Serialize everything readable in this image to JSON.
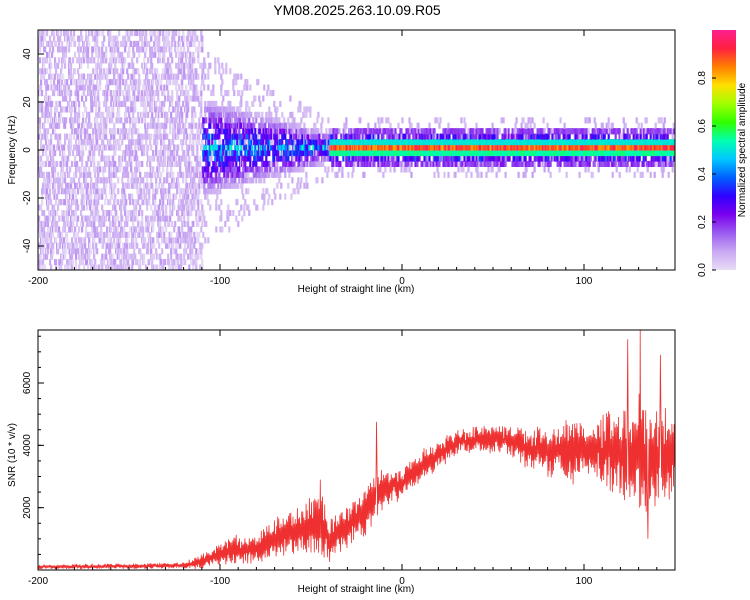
{
  "title": "YM08.2025.263.10.09.R05",
  "chart_data": [
    {
      "type": "heatmap",
      "title": "YM08.2025.263.10.09.R05",
      "xlabel": "Height of straight line (km)",
      "ylabel": "Frequency (Hz)",
      "xlim": [
        -200,
        150
      ],
      "ylim": [
        -50,
        50
      ],
      "xticks": [
        -200,
        -100,
        0,
        100
      ],
      "yticks": [
        -40,
        -20,
        0,
        20,
        40
      ],
      "colorbar": {
        "label": "Normalized spectral amplitude",
        "range": [
          0,
          1
        ],
        "ticks": [
          0.0,
          0.2,
          0.4,
          0.6,
          0.8
        ],
        "colors": [
          "#e8ddf6",
          "#c9a8f2",
          "#9b5cf0",
          "#7a00ee",
          "#3000ff",
          "#0060ff",
          "#00c8ff",
          "#00ffb0",
          "#30ff00",
          "#a0ff00",
          "#ffe000",
          "#ff8000",
          "#ff2040",
          "#ff2090"
        ]
      },
      "regions": [
        {
          "name": "noise",
          "x_range": [
            -200,
            -110
          ],
          "freq_range": [
            -50,
            50
          ],
          "amplitude_range": [
            0.0,
            0.1
          ]
        },
        {
          "name": "spread-signal",
          "x_range": [
            -110,
            -40
          ],
          "freq_range": [
            -10,
            12
          ],
          "amplitude_range": [
            0.05,
            0.55
          ]
        },
        {
          "name": "narrow-line",
          "x_range": [
            -40,
            150
          ],
          "center_freq": 1,
          "freq_halfwidth": 3,
          "amplitude_range": [
            0.4,
            1.0
          ]
        }
      ]
    },
    {
      "type": "line",
      "xlabel": "Height of straight line (km)",
      "ylabel": "SNR (10 * v/v)",
      "xlim": [
        -200,
        150
      ],
      "ylim": [
        0,
        7700
      ],
      "xticks": [
        -200,
        -100,
        0,
        100
      ],
      "yticks": [
        2000,
        4000,
        6000
      ],
      "series": [
        {
          "name": "SNR",
          "color": "#ee3030",
          "x": [
            -200,
            -160,
            -120,
            -110,
            -100,
            -90,
            -80,
            -70,
            -60,
            -50,
            -45,
            -40,
            -30,
            -25,
            -20,
            -15,
            -10,
            0,
            10,
            20,
            30,
            40,
            50,
            60,
            70,
            80,
            90,
            100,
            110,
            120,
            130,
            140,
            150
          ],
          "mean": [
            100,
            120,
            150,
            300,
            500,
            650,
            700,
            1000,
            1200,
            1400,
            1500,
            1000,
            1400,
            1600,
            1900,
            2400,
            2600,
            2800,
            3300,
            3700,
            4100,
            4200,
            4200,
            4150,
            3900,
            3800,
            3800,
            3800,
            3900,
            3800,
            3600,
            3600,
            3700
          ],
          "spread": [
            70,
            80,
            100,
            250,
            350,
            450,
            500,
            650,
            750,
            900,
            1000,
            700,
            700,
            700,
            800,
            900,
            600,
            500,
            500,
            450,
            400,
            400,
            450,
            500,
            700,
            800,
            900,
            1000,
            1200,
            1500,
            1800,
            1500,
            1300
          ]
        }
      ],
      "peaks": [
        {
          "x": -14,
          "value": 4750
        },
        {
          "x": -45,
          "value": 2900
        },
        {
          "x": 124,
          "value": 7400
        },
        {
          "x": 131,
          "value": 7700
        },
        {
          "x": 142,
          "value": 6900
        },
        {
          "x": 135,
          "value": 1000
        }
      ]
    }
  ]
}
